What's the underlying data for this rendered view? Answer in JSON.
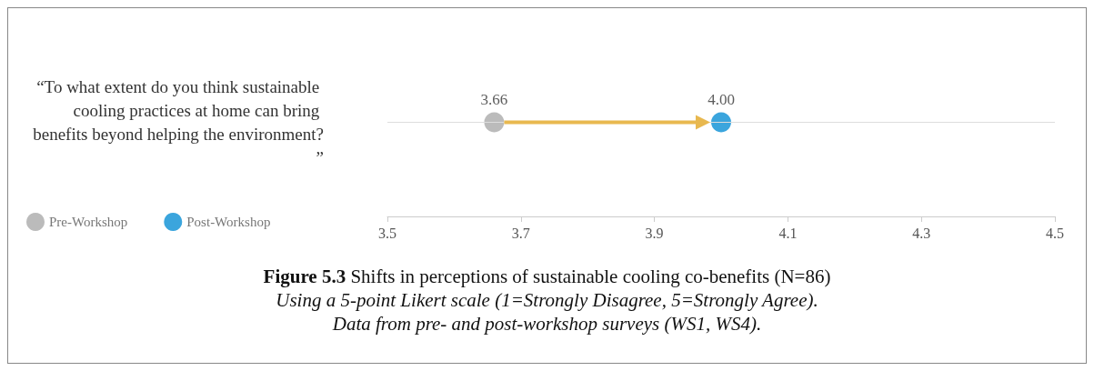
{
  "chart_data": {
    "type": "scatter",
    "orientation": "horizontal",
    "title": "Figure 5.3 Shifts in perceptions of sustainable cooling co-benefits (N=86)",
    "subtitle": "Using a 5-point Likert scale (1=Strongly Disagree, 5=Strongly Agree).",
    "annotations": [
      "Data from pre- and post-workshop surveys (WS1, WS4)."
    ],
    "categories": [
      "“To what extent do you think sustainable cooling practices at home can bring benefits beyond helping the environment?”"
    ],
    "series": [
      {
        "name": "Pre-Workshop",
        "color": "#aaaaaa",
        "values": [
          3.66
        ],
        "value_labels": [
          "3.66"
        ]
      },
      {
        "name": "Post-Workshop",
        "color": "#0a8fd4",
        "values": [
          4.0
        ],
        "value_labels": [
          "4.00"
        ]
      }
    ],
    "xlim": [
      3.5,
      4.5
    ],
    "xticks": [
      3.5,
      3.7,
      3.9,
      4.1,
      4.3,
      4.5
    ],
    "grid": "y",
    "legend": "bottom left",
    "marker": "circle"
  }
}
